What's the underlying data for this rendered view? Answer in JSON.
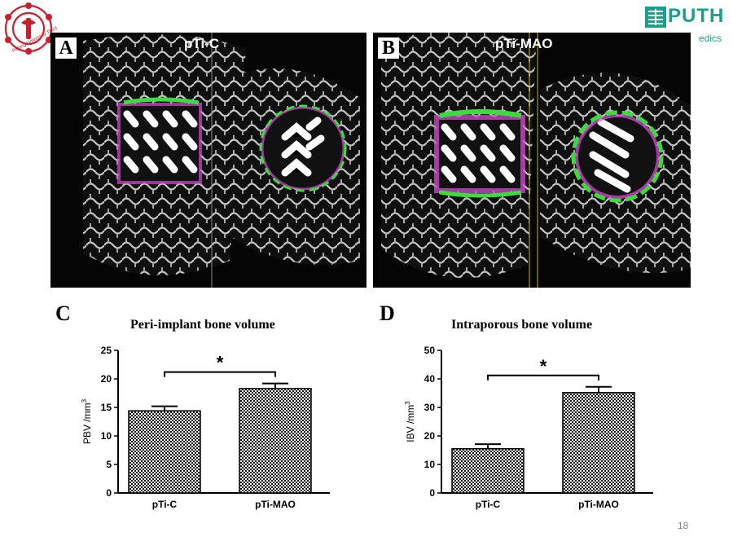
{
  "logo_left": {
    "icon": "university-seal-icon",
    "text": "Peking University Third"
  },
  "logo_right": {
    "icon": "puth-logo-icon",
    "name": "PUTH",
    "subtitle": "edics"
  },
  "panels": [
    {
      "letter": "A",
      "title": "pTi-C"
    },
    {
      "letter": "B",
      "title": "pTi-MAO"
    }
  ],
  "charts": [
    {
      "letter": "C",
      "title": "Peri-implant bone volume"
    },
    {
      "letter": "D",
      "title": "Intraporous bone volume"
    }
  ],
  "chart_data": [
    {
      "type": "bar",
      "title": "Peri-implant bone volume",
      "xlabel": "",
      "ylabel": "PBV /mm3",
      "ylim": [
        0,
        25
      ],
      "yticks": [
        0,
        5,
        10,
        15,
        20,
        25
      ],
      "categories": [
        "pTi-C",
        "pTi-MAO"
      ],
      "values": [
        14.4,
        18.3
      ],
      "errors": [
        0.8,
        0.9
      ],
      "significance": "*"
    },
    {
      "type": "bar",
      "title": "Intraporous bone volume",
      "xlabel": "",
      "ylabel": "IBV /mm3",
      "ylim": [
        0,
        50
      ],
      "yticks": [
        0,
        10,
        20,
        30,
        40,
        50
      ],
      "categories": [
        "pTi-C",
        "pTi-MAO"
      ],
      "values": [
        15.5,
        35.2
      ],
      "errors": [
        1.6,
        2.0
      ],
      "significance": "*"
    }
  ],
  "page_number": "18",
  "colors": {
    "background": "#ffffff",
    "logo_green": "#1aa08a",
    "seal_red": "#c8202f",
    "bone": "#d8d8d8",
    "implant": "#ffffff",
    "magenta": "#d84ad8",
    "green": "#3ddc3d"
  }
}
